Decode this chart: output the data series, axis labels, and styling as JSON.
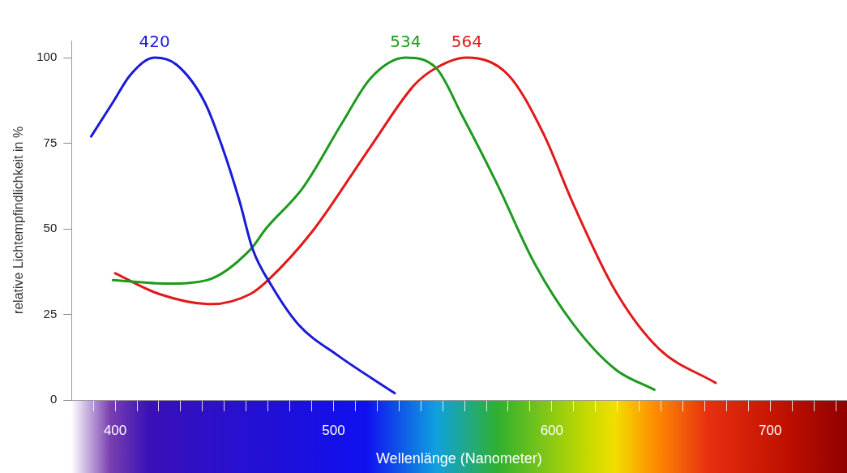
{
  "chart_data": {
    "type": "line",
    "xlabel": "Wellenlänge (Nanometer)",
    "ylabel": "relative Lichtempfindlichkeit in %",
    "xlim": [
      380,
      735
    ],
    "xticks": [
      {
        "value": 380,
        "label": null
      },
      {
        "value": 390,
        "label": null
      },
      400,
      {
        "value": 410,
        "label": null
      },
      {
        "value": 420,
        "label": null
      },
      {
        "value": 430,
        "label": null
      },
      {
        "value": 440,
        "label": null
      },
      {
        "value": 450,
        "label": null
      },
      {
        "value": 460,
        "label": null
      },
      {
        "value": 470,
        "label": null
      },
      {
        "value": 480,
        "label": null
      },
      {
        "value": 490,
        "label": null
      },
      500,
      {
        "value": 510,
        "label": null
      },
      {
        "value": 520,
        "label": null
      },
      {
        "value": 530,
        "label": null
      },
      {
        "value": 540,
        "label": null
      },
      {
        "value": 550,
        "label": null
      },
      {
        "value": 560,
        "label": null
      },
      {
        "value": 570,
        "label": null
      },
      {
        "value": 580,
        "label": null
      },
      {
        "value": 590,
        "label": null
      },
      600,
      {
        "value": 610,
        "label": null
      },
      {
        "value": 620,
        "label": null
      },
      {
        "value": 630,
        "label": null
      },
      {
        "value": 640,
        "label": null
      },
      {
        "value": 650,
        "label": null
      },
      {
        "value": 660,
        "label": null
      },
      {
        "value": 670,
        "label": null
      },
      {
        "value": 680,
        "label": null
      },
      {
        "value": 690,
        "label": null
      },
      700,
      {
        "value": 710,
        "label": null
      },
      {
        "value": 720,
        "label": null
      },
      {
        "value": 730,
        "label": null
      }
    ],
    "ylim": [
      0,
      105
    ],
    "yticks": [
      0,
      25,
      50,
      75,
      100
    ],
    "grid": false,
    "legend": false,
    "marker": "none",
    "line_style": "solid",
    "series": [
      {
        "color": "#1a1ad8",
        "x": [
          389,
          399,
          407,
          418,
          428,
          441,
          449,
          457,
          463,
          472,
          484,
          502,
          528
        ],
        "values": [
          77,
          87,
          95,
          100,
          98,
          87,
          74,
          58,
          44,
          33,
          22,
          13,
          2
        ]
      },
      {
        "color": "#1e9a1e",
        "x": [
          399,
          424,
          442,
          462,
          469,
          486,
          504,
          517,
          533,
          547,
          559,
          575,
          592,
          610,
          629,
          647
        ],
        "values": [
          35,
          34,
          35,
          44,
          50,
          62,
          81,
          94,
          100,
          97,
          83,
          63,
          40,
          22,
          9,
          3
        ]
      },
      {
        "color": "#e01a1a",
        "x": [
          400,
          420,
          444,
          462,
          470,
          490,
          517,
          537,
          547,
          561,
          580,
          596,
          610,
          629,
          649,
          675
        ],
        "values": [
          37,
          31,
          28,
          31,
          35,
          49,
          74,
          92,
          97,
          100,
          95,
          78,
          57,
          32,
          15,
          5
        ]
      }
    ],
    "annotations": [
      {
        "text": "420",
        "x": 418,
        "y": 100
      },
      {
        "text": "534",
        "x": 533,
        "y": 100
      },
      {
        "text": "564",
        "x": 561,
        "y": 100
      }
    ]
  }
}
